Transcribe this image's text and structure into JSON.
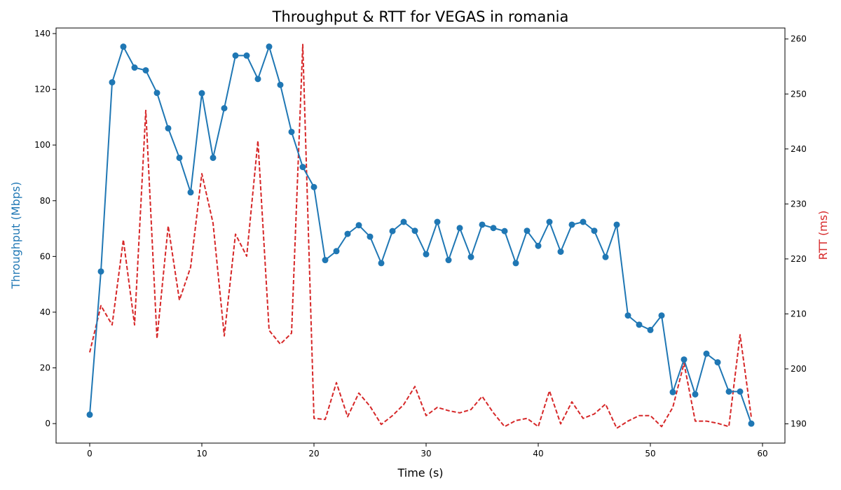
{
  "chart_data": {
    "type": "line",
    "title": "Throughput & RTT for VEGAS in romania",
    "xlabel": "Time (s)",
    "ylabel_left": "Throughput (Mbps)",
    "ylabel_right": "RTT (ms)",
    "xlim": [
      -3,
      62
    ],
    "ylim_left": [
      -7,
      142
    ],
    "ylim_right": [
      186.5,
      262
    ],
    "x_ticks": [
      0,
      10,
      20,
      30,
      40,
      50,
      60
    ],
    "y_left_ticks": [
      0,
      20,
      40,
      60,
      80,
      100,
      120,
      140
    ],
    "y_right_ticks": [
      190,
      200,
      210,
      220,
      230,
      240,
      250,
      260
    ],
    "grid": false,
    "legend": "none",
    "x": [
      0,
      1,
      2,
      3,
      4,
      5,
      6,
      7,
      8,
      9,
      10,
      11,
      12,
      13,
      14,
      15,
      16,
      17,
      18,
      19,
      20,
      21,
      22,
      23,
      24,
      25,
      26,
      27,
      28,
      29,
      30,
      31,
      32,
      33,
      34,
      35,
      36,
      37,
      38,
      39,
      40,
      41,
      42,
      43,
      44,
      45,
      46,
      47,
      48,
      49,
      50,
      51,
      52,
      53,
      54,
      55,
      56,
      57,
      58,
      59
    ],
    "series": [
      {
        "axis": "left",
        "color": "#1f77b4",
        "style": "solid",
        "marker": "circle",
        "values": [
          3.2,
          54.6,
          122.5,
          135.3,
          127.8,
          126.8,
          118.7,
          106,
          95.4,
          83,
          118.6,
          95.4,
          113.2,
          132.1,
          132.1,
          123.7,
          135.3,
          121.6,
          104.7,
          92.1,
          84.9,
          58.7,
          61.9,
          68.1,
          71.2,
          67.1,
          57.6,
          69.1,
          72.4,
          69.2,
          60.8,
          72.4,
          58.7,
          70.2,
          59.8,
          71.4,
          70.2,
          69.1,
          57.6,
          69.2,
          63.8,
          72.4,
          61.7,
          71.4,
          72.4,
          69.2,
          59.8,
          71.4,
          38.8,
          35.5,
          33.6,
          38.8,
          11.3,
          23,
          10.5,
          25.1,
          22,
          11.5,
          11.5,
          0
        ]
      },
      {
        "axis": "right",
        "color": "#d62728",
        "style": "dashed",
        "marker": "none",
        "values": [
          203,
          211.5,
          208,
          223.5,
          208,
          247,
          205.5,
          226,
          212.5,
          218.5,
          235.5,
          226.5,
          206,
          224.5,
          220.5,
          241.5,
          207,
          204.5,
          206.5,
          259,
          191,
          190.8,
          197.5,
          191.3,
          195.6,
          193.2,
          189.9,
          191.5,
          193.5,
          196.8,
          191.5,
          193,
          192.4,
          192,
          192.6,
          195,
          192,
          189.5,
          190.6,
          191,
          189.5,
          196,
          190,
          194,
          191,
          191.8,
          193.6,
          189.2,
          190.5,
          191.5,
          191.5,
          189.5,
          193,
          201,
          190.5,
          190.5,
          190.1,
          189.5,
          206.2,
          191.2
        ]
      }
    ]
  }
}
